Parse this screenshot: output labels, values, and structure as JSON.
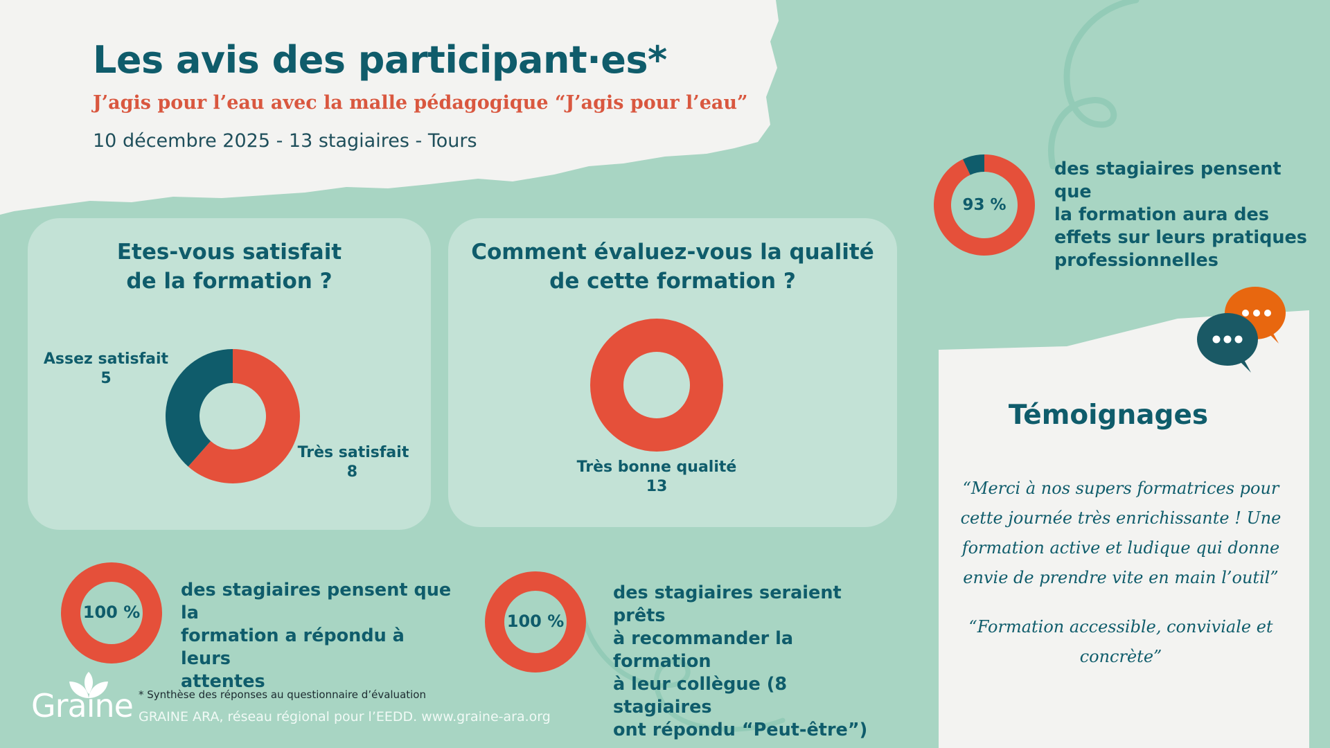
{
  "header": {
    "title": "Les avis des participant·es*",
    "subtitle": "J’agis pour l’eau avec la malle pédagogique “J’agis pour l’eau”",
    "meta": "10 décembre 2025 - 13 stagiaires - Tours"
  },
  "colors": {
    "background": "#a8d5c3",
    "card": "#c3e2d6",
    "red": "#e5503a",
    "teal": "#0f5c6b",
    "orange": "#e8670f",
    "paper": "#f3f3f1"
  },
  "chart_data": [
    {
      "type": "pie",
      "title": "Etes-vous satisfait de la formation ?",
      "title_lines": [
        "Etes-vous satisfait",
        "de la formation ?"
      ],
      "categories": [
        "Assez satisfait",
        "Très satisfait"
      ],
      "values": [
        5,
        8
      ],
      "colors": [
        "#0f5c6b",
        "#e5503a"
      ]
    },
    {
      "type": "pie",
      "title": "Comment évaluez-vous la qualité de cette formation ?",
      "title_lines": [
        "Comment évaluez-vous la qualité",
        "de cette formation ?"
      ],
      "categories": [
        "Très bonne qualité"
      ],
      "values": [
        13
      ],
      "colors": [
        "#e5503a"
      ]
    },
    {
      "type": "pie",
      "label": "93 %",
      "values": [
        93,
        7
      ],
      "text_lines": [
        "des stagiaires pensent que",
        "la formation aura des",
        "effets sur leurs pratiques",
        "professionnelles"
      ]
    },
    {
      "type": "pie",
      "label": "100 %",
      "values": [
        100
      ],
      "text_lines": [
        "des stagiaires pensent que la",
        "formation a répondu à leurs",
        "attentes"
      ]
    },
    {
      "type": "pie",
      "label": "100 %",
      "values": [
        100
      ],
      "text_lines": [
        "des stagiaires seraient prêts",
        "à recommander la formation",
        "à leur collègue (8 stagiaires",
        "ont répondu “Peut-être”)"
      ]
    }
  ],
  "testimonials": {
    "title": "Témoignages",
    "quote1_lines": [
      "“Merci à nos supers formatrices pour",
      "cette journée très enrichissante ! Une",
      "formation active et ludique qui donne",
      "envie de prendre vite en main l’outil”"
    ],
    "quote2_lines": [
      "“Formation accessible, conviviale et",
      "concrète”"
    ]
  },
  "footer": {
    "footnote": "* Synthèse des réponses au questionnaire d’évaluation",
    "credit": "GRAINE ARA, réseau régional pour l’EEDD. www.graine-ara.org",
    "logo": "Graine",
    "logo_icon": "leaf-sprout-icon"
  },
  "icons": {
    "speech_bubbles": "speech-bubbles-icon"
  }
}
